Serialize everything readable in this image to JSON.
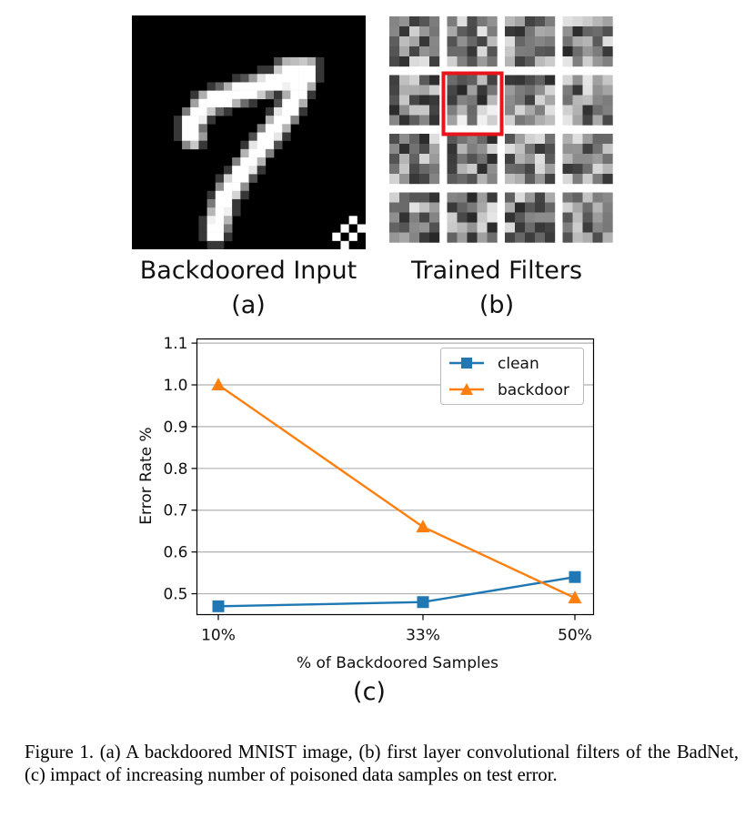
{
  "panel_a": {
    "title": "Backdoored Input",
    "sublabel": "(a)"
  },
  "panel_b": {
    "title": "Trained Filters",
    "sublabel": "(b)"
  },
  "panel_c": {
    "sublabel": "(c)"
  },
  "chart_data": {
    "type": "line",
    "categories": [
      "10%",
      "33%",
      "50%"
    ],
    "xlabel": "% of Backdoored Samples",
    "ylabel": "Error Rate %",
    "ylim": [
      0.45,
      1.11
    ],
    "yticks": [
      "0.5",
      "0.6",
      "0.7",
      "0.8",
      "0.9",
      "1.0",
      "1.1"
    ],
    "grid": "horizontal",
    "legend_position": "top-right",
    "series": [
      {
        "name": "clean",
        "marker": "square",
        "color": "#1f77b4",
        "values": [
          0.47,
          0.48,
          0.54
        ]
      },
      {
        "name": "backdoor",
        "marker": "triangle",
        "color": "#ff7f0e",
        "values": [
          1.0,
          0.66,
          0.49
        ]
      }
    ]
  },
  "caption": "Figure 1. (a) A backdoored MNIST image, (b) first layer convolutional filters of the BadNet, (c) impact of increasing number of poisoned data samples on test error."
}
